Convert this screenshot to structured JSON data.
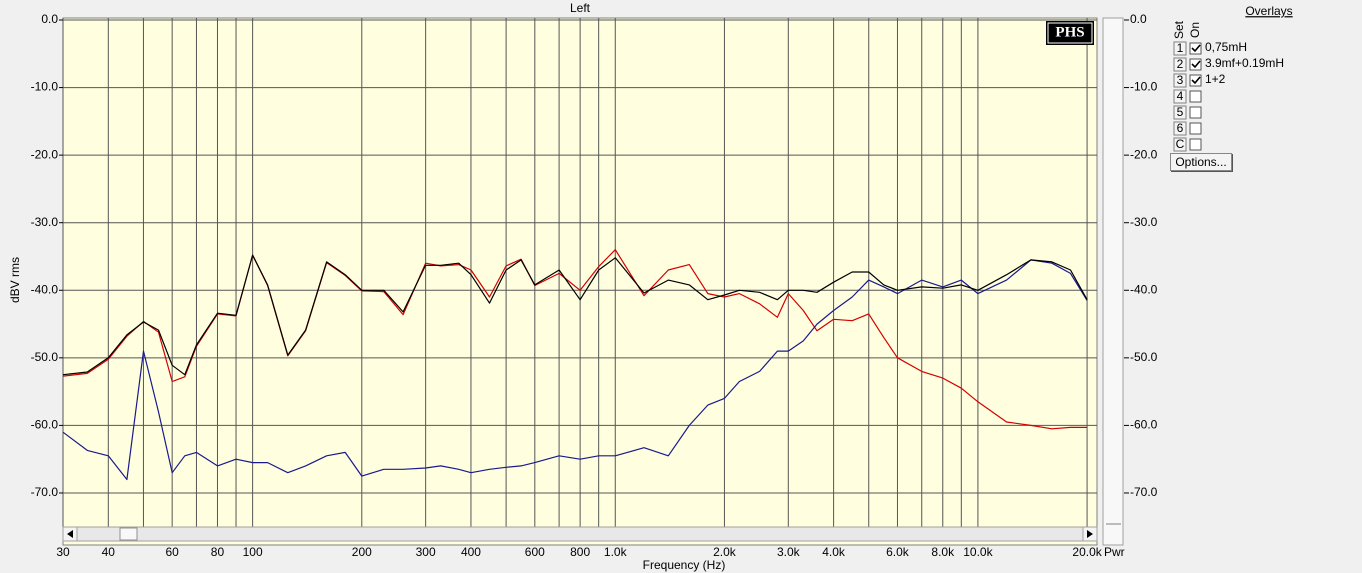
{
  "chart_data": {
    "type": "line",
    "title": "Left",
    "x_label": "Frequency (Hz)",
    "y_label": "dBV rms",
    "y2_label": "Pwr",
    "logo": "PHS",
    "log_x": true,
    "grid": true,
    "xlim": [
      30,
      21300
    ],
    "ylim": [
      -77.7,
      0
    ],
    "y2lim": [
      -77.7,
      0
    ],
    "xticks": [
      30,
      40,
      60,
      80,
      100,
      200,
      300,
      400,
      600,
      800,
      {
        "value": 1000,
        "label": "1.0k"
      },
      {
        "value": 2000,
        "label": "2.0k"
      },
      {
        "value": 3000,
        "label": "3.0k"
      },
      {
        "value": 4000,
        "label": "4.0k"
      },
      {
        "value": 6000,
        "label": "6.0k"
      },
      {
        "value": 8000,
        "label": "8.0k"
      },
      {
        "value": 10000,
        "label": "10.0k"
      },
      {
        "value": 20000,
        "label": "20.0k"
      }
    ],
    "xminor": [
      50,
      70,
      90,
      500,
      700,
      900,
      5000,
      7000,
      9000
    ],
    "yticks": [
      {
        "value": 0,
        "label": "0.0"
      },
      {
        "value": -10,
        "label": "-10.0"
      },
      {
        "value": -20,
        "label": "-20.0"
      },
      {
        "value": -30,
        "label": "-30.0"
      },
      {
        "value": -40,
        "label": "-40.0"
      },
      {
        "value": -50,
        "label": "-50.0"
      },
      {
        "value": -60,
        "label": "-60.0"
      },
      {
        "value": -70,
        "label": "-70.0"
      }
    ],
    "y2ticks": [
      {
        "value": 0,
        "label": "0.0"
      },
      {
        "value": -10,
        "label": "-10.0"
      },
      {
        "value": -20,
        "label": "-20.0"
      },
      {
        "value": -30,
        "label": "-30.0"
      },
      {
        "value": -40,
        "label": "-40.0"
      },
      {
        "value": -50,
        "label": "-50.0"
      },
      {
        "value": -60,
        "label": "-60.0"
      },
      {
        "value": -70,
        "label": "-70.0"
      }
    ],
    "x": [
      30,
      35,
      40,
      45,
      50,
      55,
      60,
      65,
      70,
      80,
      90,
      100,
      110,
      125,
      140,
      160,
      180,
      200,
      230,
      260,
      300,
      330,
      370,
      400,
      450,
      500,
      550,
      600,
      700,
      800,
      900,
      1000,
      1200,
      1400,
      1600,
      1800,
      2000,
      2200,
      2500,
      2800,
      3000,
      3300,
      3600,
      4000,
      4500,
      5000,
      5500,
      6000,
      7000,
      8000,
      9000,
      10000,
      12000,
      14000,
      16000,
      18000,
      20000
    ],
    "series": [
      {
        "name": "0,75mH",
        "color": "#d40000",
        "values": [
          -52.7,
          -52.3,
          -50.2,
          -46.8,
          -44.6,
          -46.2,
          -53.5,
          -52.8,
          -48.3,
          -43.5,
          -43.8,
          -34.8,
          -39.3,
          -49.7,
          -46.0,
          -35.9,
          -37.8,
          -40.1,
          -40.2,
          -43.6,
          -36.0,
          -36.4,
          -36.2,
          -37.0,
          -41.0,
          -36.4,
          -35.4,
          -39.3,
          -37.5,
          -40.0,
          -36.5,
          -34.0,
          -40.8,
          -37.0,
          -36.2,
          -40.5,
          -41.0,
          -40.5,
          -42.0,
          -44.0,
          -40.5,
          -43.0,
          -46.0,
          -44.3,
          -44.5,
          -43.5,
          -47.0,
          -50.0,
          -52.0,
          -53.0,
          -54.5,
          -56.5,
          -59.5,
          -60.0,
          -60.5,
          -60.3,
          -60.3
        ]
      },
      {
        "name": "3.9mf+0.19mH",
        "color": "#1a1a8c",
        "values": [
          -61.0,
          -63.7,
          -64.5,
          -68.0,
          -49.0,
          -58.0,
          -67.0,
          -64.5,
          -64.0,
          -66.0,
          -65.0,
          -65.5,
          -65.5,
          -67.0,
          -66.0,
          -64.5,
          -64.0,
          -67.5,
          -66.5,
          -66.5,
          -66.3,
          -66.0,
          -66.5,
          -67.0,
          -66.5,
          -66.2,
          -66.0,
          -65.5,
          -64.5,
          -65.0,
          -64.5,
          -64.5,
          -63.3,
          -64.5,
          -60.0,
          -57.0,
          -56.0,
          -53.5,
          -52.0,
          -49.0,
          -49.0,
          -47.5,
          -45.0,
          -43.0,
          -41.0,
          -38.5,
          -39.5,
          -40.5,
          -38.5,
          -39.5,
          -38.5,
          -40.5,
          -38.5,
          -35.5,
          -36.0,
          -37.5,
          -41.5
        ]
      },
      {
        "name": "1+2",
        "color": "#000000",
        "values": [
          -52.5,
          -52.1,
          -50.0,
          -46.6,
          -44.7,
          -45.9,
          -51.1,
          -52.5,
          -48.1,
          -43.4,
          -43.7,
          -34.8,
          -39.2,
          -49.6,
          -45.9,
          -35.8,
          -37.7,
          -40.0,
          -40.0,
          -43.2,
          -36.3,
          -36.3,
          -36.0,
          -37.7,
          -41.9,
          -37.0,
          -35.5,
          -39.2,
          -37.0,
          -41.4,
          -37.0,
          -35.2,
          -40.4,
          -38.5,
          -39.2,
          -41.4,
          -40.7,
          -40.0,
          -40.3,
          -41.4,
          -40.0,
          -40.0,
          -40.3,
          -38.8,
          -37.3,
          -37.3,
          -39.2,
          -40.0,
          -39.5,
          -39.7,
          -39.2,
          -40.0,
          -37.7,
          -35.5,
          -35.8,
          -37.0,
          -41.4
        ]
      }
    ]
  },
  "ui": {
    "overlays_title": "Overlays",
    "set_header": "Set",
    "on_header": "On",
    "sets": [
      "1",
      "2",
      "3",
      "4",
      "5",
      "6",
      "C"
    ],
    "checked": [
      true,
      true,
      true,
      false,
      false,
      false,
      false
    ],
    "options_button": "Options..."
  }
}
